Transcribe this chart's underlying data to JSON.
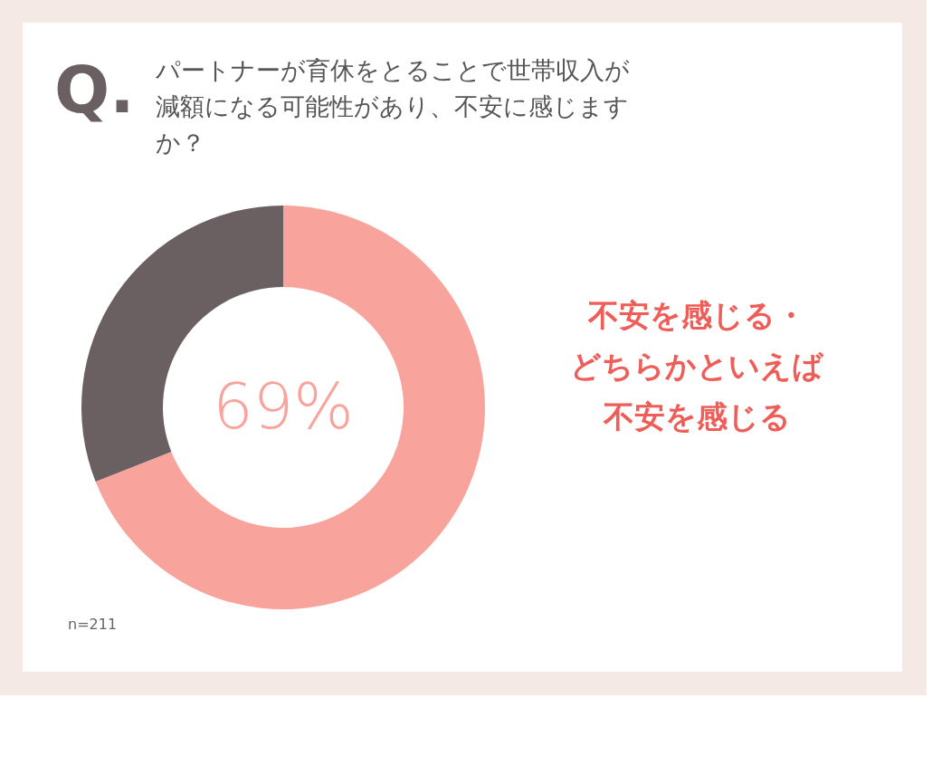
{
  "chart_data": {
    "type": "donut",
    "title": "パートナーが育休をとることで世帯収入が減額になる可能性があり、不安に感じますか？",
    "categories": [
      "不安を感じる・どちらかといえば不安を感じる",
      null
    ],
    "values": [
      69,
      31
    ],
    "colors": [
      "#f8a39b",
      "#6b6061"
    ],
    "value_labels": [
      "69%",
      null
    ],
    "annotations": [
      "Q.",
      "n=211"
    ]
  }
}
